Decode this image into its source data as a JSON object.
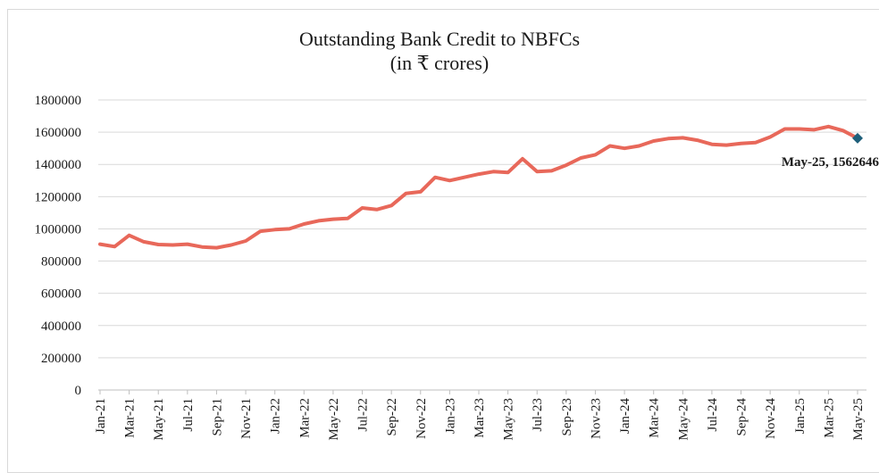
{
  "chart_data": {
    "type": "line",
    "title": "Outstanding Bank Credit to NBFCs",
    "subtitle": "(in ₹ crores)",
    "xlabel": "",
    "ylabel": "",
    "ylim": [
      0,
      1800000
    ],
    "yticks": [
      0,
      200000,
      400000,
      600000,
      800000,
      1000000,
      1200000,
      1400000,
      1600000,
      1800000
    ],
    "y_tick_labels": [
      "0",
      "200000",
      "400000",
      "600000",
      "800000",
      "1000000",
      "1200000",
      "1400000",
      "1600000",
      "1800000"
    ],
    "grid": true,
    "x_tick_labels": [
      "Jan-21",
      "Mar-21",
      "May-21",
      "Jul-21",
      "Sep-21",
      "Nov-21",
      "Jan-22",
      "Mar-22",
      "May-22",
      "Jul-22",
      "Sep-22",
      "Nov-22",
      "Jan-23",
      "Mar-23",
      "May-23",
      "Jul-23",
      "Sep-23",
      "Nov-23",
      "Jan-24",
      "Mar-24",
      "May-24",
      "Jul-24",
      "Sep-24",
      "Nov-24",
      "Jan-25",
      "Mar-25",
      "May-25"
    ],
    "categories": [
      "Jan-21",
      "Feb-21",
      "Mar-21",
      "Apr-21",
      "May-21",
      "Jun-21",
      "Jul-21",
      "Aug-21",
      "Sep-21",
      "Oct-21",
      "Nov-21",
      "Dec-21",
      "Jan-22",
      "Feb-22",
      "Mar-22",
      "Apr-22",
      "May-22",
      "Jun-22",
      "Jul-22",
      "Aug-22",
      "Sep-22",
      "Oct-22",
      "Nov-22",
      "Dec-22",
      "Jan-23",
      "Feb-23",
      "Mar-23",
      "Apr-23",
      "May-23",
      "Jun-23",
      "Jul-23",
      "Aug-23",
      "Sep-23",
      "Oct-23",
      "Nov-23",
      "Dec-23",
      "Jan-24",
      "Feb-24",
      "Mar-24",
      "Apr-24",
      "May-24",
      "Jun-24",
      "Jul-24",
      "Aug-24",
      "Sep-24",
      "Oct-24",
      "Nov-24",
      "Dec-24",
      "Jan-25",
      "Feb-25",
      "Mar-25",
      "Apr-25",
      "May-25"
    ],
    "series": [
      {
        "name": "",
        "color": "#e8685a",
        "values": [
          905000,
          890000,
          960000,
          920000,
          903000,
          900000,
          905000,
          888000,
          883000,
          900000,
          925000,
          985000,
          995000,
          1000000,
          1030000,
          1050000,
          1060000,
          1065000,
          1130000,
          1120000,
          1145000,
          1220000,
          1230000,
          1320000,
          1300000,
          1320000,
          1340000,
          1355000,
          1350000,
          1435000,
          1355000,
          1360000,
          1395000,
          1440000,
          1460000,
          1515000,
          1500000,
          1515000,
          1545000,
          1560000,
          1565000,
          1550000,
          1525000,
          1520000,
          1530000,
          1535000,
          1570000,
          1620000,
          1620000,
          1615000,
          1635000,
          1610000,
          1562646
        ]
      }
    ],
    "annotation": {
      "label": "May-25, 1562646",
      "category": "May-25",
      "value": 1562646,
      "marker_color": "#1f5f7a"
    }
  }
}
